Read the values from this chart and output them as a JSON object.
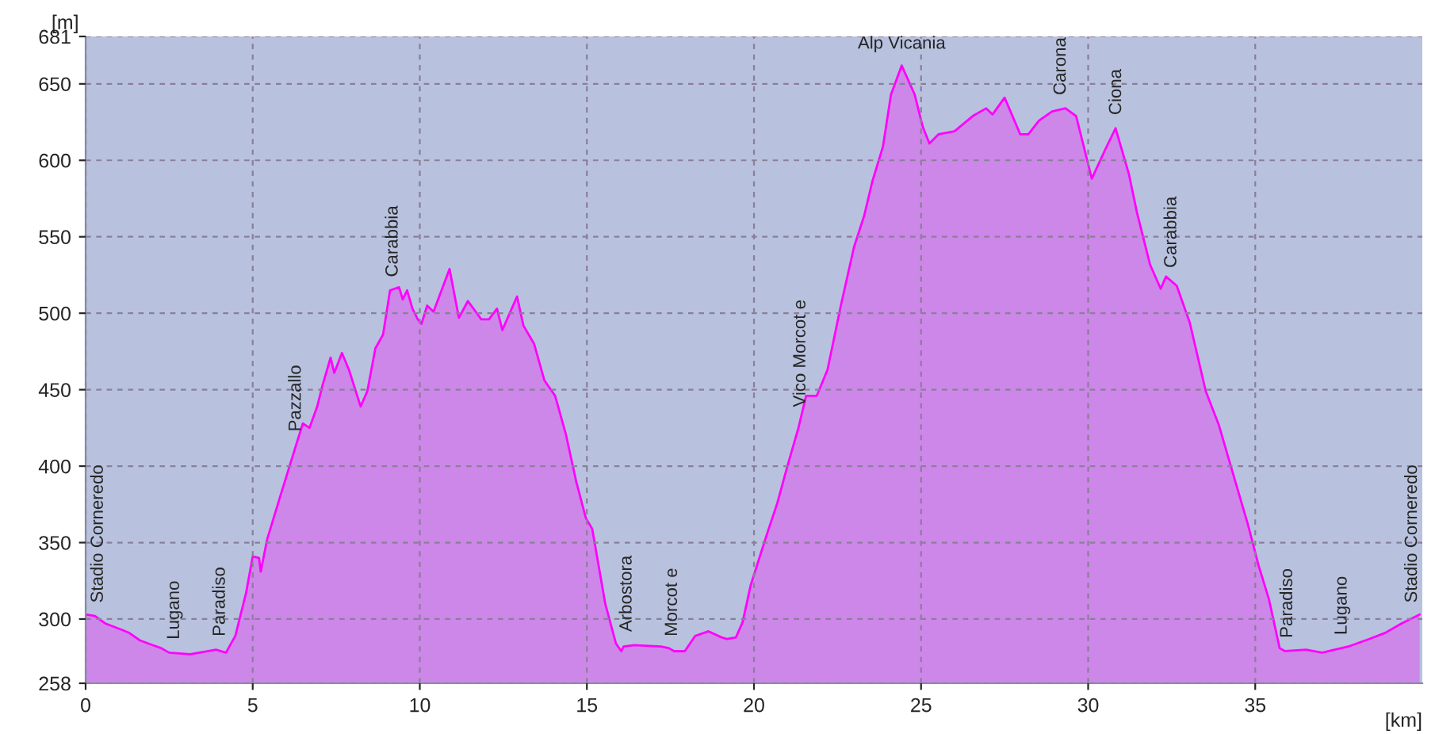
{
  "chart_data": {
    "type": "area",
    "xlabel": "[km]",
    "ylabel": "[m]",
    "x": [
      0,
      0.28,
      0.6,
      1.08,
      1.3,
      1.63,
      2.0,
      2.26,
      2.5,
      3.13,
      3.9,
      4.2,
      4.48,
      4.8,
      5.0,
      5.19,
      5.24,
      5.43,
      5.82,
      6.06,
      6.3,
      6.5,
      6.7,
      6.93,
      7.09,
      7.33,
      7.44,
      7.67,
      7.88,
      8.23,
      8.43,
      8.67,
      8.9,
      9.11,
      9.38,
      9.49,
      9.62,
      9.78,
      9.94,
      10.05,
      10.22,
      10.41,
      10.89,
      11.17,
      11.44,
      11.84,
      12.07,
      12.31,
      12.47,
      12.91,
      13.1,
      13.42,
      13.73,
      14.05,
      14.37,
      14.68,
      14.97,
      15.16,
      15.55,
      15.87,
      16.03,
      16.1,
      16.42,
      17.22,
      17.45,
      17.61,
      17.93,
      18.24,
      18.64,
      19.03,
      19.19,
      19.46,
      19.66,
      19.9,
      20.38,
      20.7,
      21.0,
      21.33,
      21.56,
      21.88,
      22.2,
      22.6,
      22.99,
      23.3,
      23.54,
      23.86,
      24.1,
      24.42,
      24.81,
      25.05,
      25.25,
      25.52,
      26.0,
      26.55,
      26.95,
      27.14,
      27.5,
      27.97,
      28.21,
      28.53,
      28.92,
      29.32,
      29.64,
      30.11,
      30.51,
      30.82,
      31.22,
      31.46,
      31.85,
      32.17,
      32.33,
      32.65,
      33.04,
      33.52,
      33.91,
      34.31,
      34.78,
      35.1,
      35.41,
      35.73,
      35.89,
      36.52,
      37.0,
      37.78,
      38.42,
      38.89,
      39.37,
      39.92
    ],
    "series": [
      {
        "color": "#ff00ff",
        "values": [
          303,
          302,
          297,
          293,
          291,
          286,
          283,
          281,
          278,
          277,
          280,
          278,
          289,
          317,
          341,
          340,
          331,
          352,
          380,
          397,
          414,
          428,
          425,
          439,
          453,
          471,
          461,
          474,
          463,
          439,
          449,
          477,
          486,
          515,
          517,
          509,
          515,
          503,
          496,
          493,
          505,
          501,
          529,
          497,
          508,
          496,
          496,
          503,
          489,
          511,
          492,
          480,
          456,
          446,
          421,
          390,
          366,
          359,
          310,
          284,
          279,
          282,
          283,
          282,
          281,
          279,
          279,
          289,
          292,
          288,
          287,
          288,
          298,
          322,
          355,
          376,
          400,
          425,
          446,
          446,
          463,
          505,
          543,
          564,
          586,
          609,
          643,
          662,
          643,
          622,
          611,
          617,
          619,
          629,
          634,
          630,
          641,
          617,
          617,
          626,
          632,
          634,
          629,
          588,
          607,
          621,
          591,
          566,
          532,
          516,
          524,
          518,
          494,
          449,
          427,
          397,
          362,
          335,
          313,
          281,
          279,
          280,
          278,
          282,
          287,
          291,
          297,
          303
        ]
      }
    ],
    "xlim": [
      0,
      40
    ],
    "xticks": [
      0,
      5,
      10,
      15,
      20,
      25,
      30,
      35
    ],
    "ylim": [
      258,
      681
    ],
    "yticks": [
      258,
      300,
      350,
      400,
      450,
      500,
      550,
      600,
      650,
      681
    ],
    "grid": true,
    "annotations": [
      {
        "text": "Stadio Corneredo",
        "x": 0.38,
        "y": 302
      },
      {
        "text": "Lugano",
        "x": 2.66,
        "y": 278
      },
      {
        "text": "Paradiso",
        "x": 4.03,
        "y": 280
      },
      {
        "text": "Pazzallo",
        "x": 6.3,
        "y": 414
      },
      {
        "text": "Carabbia",
        "x": 9.2,
        "y": 515
      },
      {
        "text": "Arbostora",
        "x": 16.2,
        "y": 283
      },
      {
        "text": "Morcot e",
        "x": 17.56,
        "y": 280
      },
      {
        "text": "Vico Morcot e",
        "x": 21.4,
        "y": 430
      },
      {
        "text": "Alp Vicania",
        "x": 24.42,
        "y": 662
      },
      {
        "text": "Carona",
        "x": 29.19,
        "y": 634
      },
      {
        "text": "Ciona",
        "x": 30.85,
        "y": 621
      },
      {
        "text": "Carabbia",
        "x": 32.5,
        "y": 521
      },
      {
        "text": "Paradiso",
        "x": 35.97,
        "y": 279
      },
      {
        "text": "Lugano",
        "x": 37.6,
        "y": 281
      },
      {
        "text": "Stadio Corneredo",
        "x": 39.7,
        "y": 302
      }
    ]
  }
}
